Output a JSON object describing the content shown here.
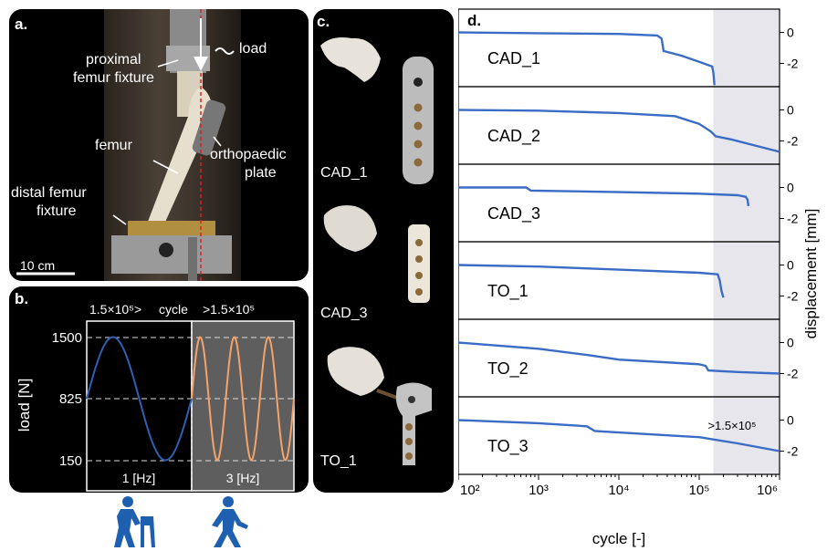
{
  "panel_a": {
    "label": "a.",
    "annotations": {
      "load": "load",
      "proximal_line1": "proximal",
      "proximal_line2": "femur fixture",
      "femur": "femur",
      "plate_line1": "orthopaedic",
      "plate_line2": "plate",
      "distal_line1": "distal femur",
      "distal_line2": "fixture",
      "scale_bar": "10 cm"
    }
  },
  "panel_b": {
    "label": "b.",
    "header_left": "1.5×10⁵>",
    "header_mid": "cycle",
    "header_right": ">1.5×10⁵",
    "ylabel": "load [N]",
    "yticks": [
      "1500",
      "825",
      "150"
    ],
    "left_freq": "1 [Hz]",
    "right_freq": "3 [Hz]",
    "line_colors": {
      "left": "#2f5fb3",
      "right": "#f4a46a"
    },
    "icons": [
      "walker-person-icon",
      "walking-person-icon"
    ]
  },
  "panel_c": {
    "label": "c.",
    "specimens": [
      "CAD_1",
      "CAD_3",
      "TO_1"
    ]
  },
  "chart_data": {
    "type": "line",
    "label": "d.",
    "xlabel": "cycle [-]",
    "ylabel": "displacement [mm]",
    "x_scale": "log",
    "xlim": [
      100,
      1000000
    ],
    "xticks": [
      "10²",
      "10³",
      "10⁴",
      "10⁵",
      "10⁶"
    ],
    "yticks": [
      "0",
      "-2"
    ],
    "ylim": [
      -3.5,
      1.5
    ],
    "shaded_from": 150000,
    "shade_label": ">1.5×10⁵",
    "line_color": "#3a6cc6",
    "shade_color": "#e6e6ec",
    "series": [
      {
        "name": "CAD_1",
        "x": [
          100,
          1000,
          10000,
          30000,
          34000,
          36000,
          60000,
          100000,
          145000,
          150000,
          155000
        ],
        "y": [
          0,
          -0.05,
          -0.1,
          -0.2,
          -0.4,
          -1.2,
          -1.5,
          -1.9,
          -2.2,
          -2.6,
          -3.4
        ]
      },
      {
        "name": "CAD_2",
        "x": [
          100,
          1000,
          10000,
          50000,
          100000,
          140000,
          160000,
          250000,
          500000,
          1000000
        ],
        "y": [
          0,
          -0.05,
          -0.2,
          -0.4,
          -0.9,
          -1.4,
          -1.7,
          -1.9,
          -2.3,
          -2.7
        ]
      },
      {
        "name": "CAD_3",
        "x": [
          100,
          700,
          800,
          10000,
          100000,
          300000,
          380000,
          400000,
          410000
        ],
        "y": [
          0,
          0,
          -0.2,
          -0.3,
          -0.4,
          -0.5,
          -0.6,
          -0.8,
          -1.2
        ]
      },
      {
        "name": "TO_1",
        "x": [
          100,
          1000,
          10000,
          100000,
          170000,
          180000,
          190000,
          200000
        ],
        "y": [
          0,
          -0.1,
          -0.3,
          -0.5,
          -0.6,
          -1.0,
          -1.7,
          -2.1
        ]
      },
      {
        "name": "TO_2",
        "x": [
          100,
          1000,
          4000,
          10000,
          100000,
          120000,
          130000,
          300000,
          1000000
        ],
        "y": [
          0,
          -0.4,
          -0.8,
          -1.1,
          -1.4,
          -1.5,
          -1.8,
          -1.9,
          -2.0
        ]
      },
      {
        "name": "TO_3",
        "x": [
          100,
          1000,
          4000,
          5000,
          10000,
          100000,
          300000,
          1000000
        ],
        "y": [
          0,
          -0.2,
          -0.4,
          -0.7,
          -0.8,
          -1.1,
          -1.5,
          -2.0
        ]
      }
    ]
  }
}
